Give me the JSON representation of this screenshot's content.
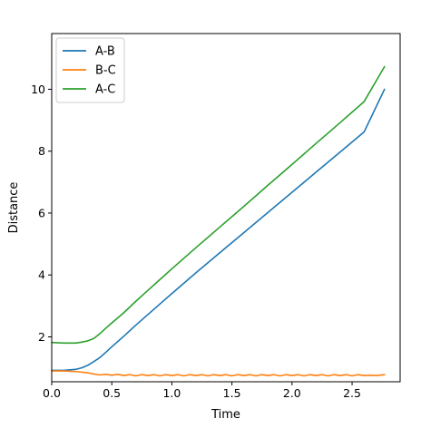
{
  "chart_data": {
    "type": "line",
    "xlabel": "Time",
    "ylabel": "Distance",
    "xlim": [
      0.0,
      2.9
    ],
    "ylim": [
      0.55,
      11.8
    ],
    "xticks": [
      0.0,
      0.5,
      1.0,
      1.5,
      2.0,
      2.5
    ],
    "xtick_labels": [
      "0.0",
      "0.5",
      "1.0",
      "1.5",
      "2.0",
      "2.5"
    ],
    "yticks": [
      2,
      4,
      6,
      8,
      10
    ],
    "ytick_labels": [
      "2",
      "4",
      "6",
      "8",
      "10"
    ],
    "grid": false,
    "legend_position": "top-left",
    "series": [
      {
        "name": "A-B",
        "color": "#1f77b4",
        "x": [
          0.0,
          0.1,
          0.2,
          0.25,
          0.3,
          0.35,
          0.4,
          0.45,
          0.5,
          0.6,
          0.7,
          0.8,
          0.9,
          1.0,
          1.2,
          1.4,
          1.6,
          1.8,
          2.0,
          2.2,
          2.4,
          2.6,
          2.77
        ],
        "y": [
          0.92,
          0.92,
          0.95,
          1.0,
          1.08,
          1.2,
          1.33,
          1.5,
          1.68,
          2.02,
          2.38,
          2.72,
          3.06,
          3.4,
          4.07,
          4.72,
          5.37,
          6.02,
          6.67,
          7.32,
          7.97,
          8.62,
          10.0
        ]
      },
      {
        "name": "B-C",
        "color": "#ff7f0e",
        "x": [
          0.0,
          0.1,
          0.2,
          0.3,
          0.35,
          0.4,
          0.45,
          0.5,
          0.55,
          0.6,
          0.65,
          0.7,
          0.75,
          0.8,
          0.85,
          0.9,
          0.95,
          1.0,
          1.05,
          1.1,
          1.15,
          1.2,
          1.25,
          1.3,
          1.35,
          1.4,
          1.45,
          1.5,
          1.55,
          1.6,
          1.65,
          1.7,
          1.75,
          1.8,
          1.85,
          1.9,
          1.95,
          2.0,
          2.05,
          2.1,
          2.15,
          2.2,
          2.25,
          2.3,
          2.35,
          2.4,
          2.45,
          2.5,
          2.55,
          2.6,
          2.65,
          2.7,
          2.77
        ],
        "y": [
          0.9,
          0.9,
          0.88,
          0.84,
          0.8,
          0.77,
          0.79,
          0.76,
          0.79,
          0.75,
          0.78,
          0.74,
          0.78,
          0.75,
          0.78,
          0.74,
          0.78,
          0.75,
          0.78,
          0.74,
          0.78,
          0.75,
          0.78,
          0.74,
          0.78,
          0.75,
          0.78,
          0.74,
          0.78,
          0.75,
          0.78,
          0.74,
          0.78,
          0.75,
          0.78,
          0.74,
          0.78,
          0.75,
          0.78,
          0.74,
          0.78,
          0.75,
          0.78,
          0.74,
          0.78,
          0.75,
          0.78,
          0.74,
          0.78,
          0.75,
          0.76,
          0.75,
          0.78
        ]
      },
      {
        "name": "A-C",
        "color": "#2ca02c",
        "x": [
          0.0,
          0.1,
          0.2,
          0.25,
          0.3,
          0.35,
          0.4,
          0.45,
          0.5,
          0.6,
          0.7,
          0.8,
          0.9,
          1.0,
          1.2,
          1.4,
          1.6,
          1.8,
          2.0,
          2.2,
          2.4,
          2.6,
          2.77
        ],
        "y": [
          1.82,
          1.8,
          1.8,
          1.83,
          1.87,
          1.95,
          2.1,
          2.28,
          2.45,
          2.78,
          3.15,
          3.5,
          3.85,
          4.2,
          4.88,
          5.55,
          6.22,
          6.9,
          7.57,
          8.25,
          8.92,
          9.6,
          10.73
        ]
      }
    ]
  }
}
